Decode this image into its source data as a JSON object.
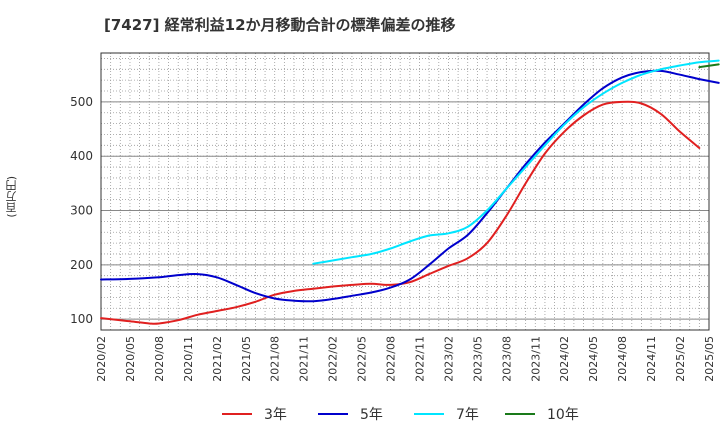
{
  "chart_data": {
    "type": "line",
    "title": "[7427]  経常利益12か月移動合計の標準偏差の推移",
    "ylabel": "(百万円)",
    "xlabel": "",
    "ylim": [
      80,
      590
    ],
    "yticks": [
      100,
      200,
      300,
      400,
      500
    ],
    "x_tick_labels": [
      "2020/02",
      "2020/05",
      "2020/08",
      "2020/11",
      "2021/02",
      "2021/05",
      "2021/08",
      "2021/11",
      "2022/02",
      "2022/05",
      "2022/08",
      "2022/11",
      "2023/02",
      "2023/05",
      "2023/08",
      "2023/11",
      "2024/02",
      "2024/05",
      "2024/08",
      "2024/11",
      "2025/02",
      "2025/05"
    ],
    "grid": true,
    "legend_position": "bottom",
    "series": [
      {
        "name": "3年",
        "color": "#e02020",
        "points": [
          [
            "2020/02",
            102
          ],
          [
            "2020/05",
            96
          ],
          [
            "2020/07",
            92
          ],
          [
            "2020/08",
            92
          ],
          [
            "2020/10",
            98
          ],
          [
            "2020/12",
            108
          ],
          [
            "2021/02",
            115
          ],
          [
            "2021/04",
            122
          ],
          [
            "2021/06",
            132
          ],
          [
            "2021/08",
            145
          ],
          [
            "2021/10",
            152
          ],
          [
            "2021/12",
            156
          ],
          [
            "2022/02",
            160
          ],
          [
            "2022/04",
            163
          ],
          [
            "2022/06",
            165
          ],
          [
            "2022/08",
            163
          ],
          [
            "2022/10",
            168
          ],
          [
            "2022/12",
            183
          ],
          [
            "2023/02",
            198
          ],
          [
            "2023/04",
            212
          ],
          [
            "2023/06",
            240
          ],
          [
            "2023/08",
            290
          ],
          [
            "2023/10",
            350
          ],
          [
            "2023/12",
            405
          ],
          [
            "2024/02",
            445
          ],
          [
            "2024/04",
            475
          ],
          [
            "2024/06",
            495
          ],
          [
            "2024/08",
            500
          ],
          [
            "2024/10",
            497
          ],
          [
            "2024/12",
            478
          ],
          [
            "2025/02",
            445
          ],
          [
            "2025/04",
            415
          ]
        ]
      },
      {
        "name": "5年",
        "color": "#0000cc",
        "points": [
          [
            "2020/02",
            173
          ],
          [
            "2020/05",
            174
          ],
          [
            "2020/08",
            177
          ],
          [
            "2020/10",
            181
          ],
          [
            "2020/12",
            183
          ],
          [
            "2021/02",
            177
          ],
          [
            "2021/04",
            163
          ],
          [
            "2021/06",
            148
          ],
          [
            "2021/08",
            138
          ],
          [
            "2021/10",
            134
          ],
          [
            "2021/12",
            133
          ],
          [
            "2022/02",
            137
          ],
          [
            "2022/04",
            143
          ],
          [
            "2022/06",
            149
          ],
          [
            "2022/08",
            158
          ],
          [
            "2022/10",
            173
          ],
          [
            "2022/12",
            200
          ],
          [
            "2023/02",
            230
          ],
          [
            "2023/04",
            255
          ],
          [
            "2023/06",
            295
          ],
          [
            "2023/08",
            340
          ],
          [
            "2023/10",
            385
          ],
          [
            "2023/12",
            425
          ],
          [
            "2024/02",
            460
          ],
          [
            "2024/04",
            495
          ],
          [
            "2024/06",
            525
          ],
          [
            "2024/08",
            545
          ],
          [
            "2024/10",
            555
          ],
          [
            "2024/12",
            557
          ],
          [
            "2025/02",
            550
          ],
          [
            "2025/04",
            542
          ],
          [
            "2025/06",
            535
          ]
        ]
      },
      {
        "name": "7年",
        "color": "#00e5ff",
        "points": [
          [
            "2021/12",
            202
          ],
          [
            "2022/02",
            208
          ],
          [
            "2022/04",
            214
          ],
          [
            "2022/06",
            220
          ],
          [
            "2022/08",
            230
          ],
          [
            "2022/10",
            243
          ],
          [
            "2022/12",
            254
          ],
          [
            "2023/02",
            258
          ],
          [
            "2023/04",
            270
          ],
          [
            "2023/06",
            300
          ],
          [
            "2023/08",
            340
          ],
          [
            "2023/10",
            380
          ],
          [
            "2023/12",
            420
          ],
          [
            "2024/02",
            458
          ],
          [
            "2024/04",
            490
          ],
          [
            "2024/06",
            515
          ],
          [
            "2024/08",
            535
          ],
          [
            "2024/10",
            550
          ],
          [
            "2024/12",
            560
          ],
          [
            "2025/02",
            567
          ],
          [
            "2025/04",
            573
          ],
          [
            "2025/06",
            576
          ]
        ]
      },
      {
        "name": "10年",
        "color": "#1a7a1a",
        "points": [
          [
            "2025/04",
            564
          ],
          [
            "2025/06",
            569
          ]
        ]
      }
    ]
  }
}
